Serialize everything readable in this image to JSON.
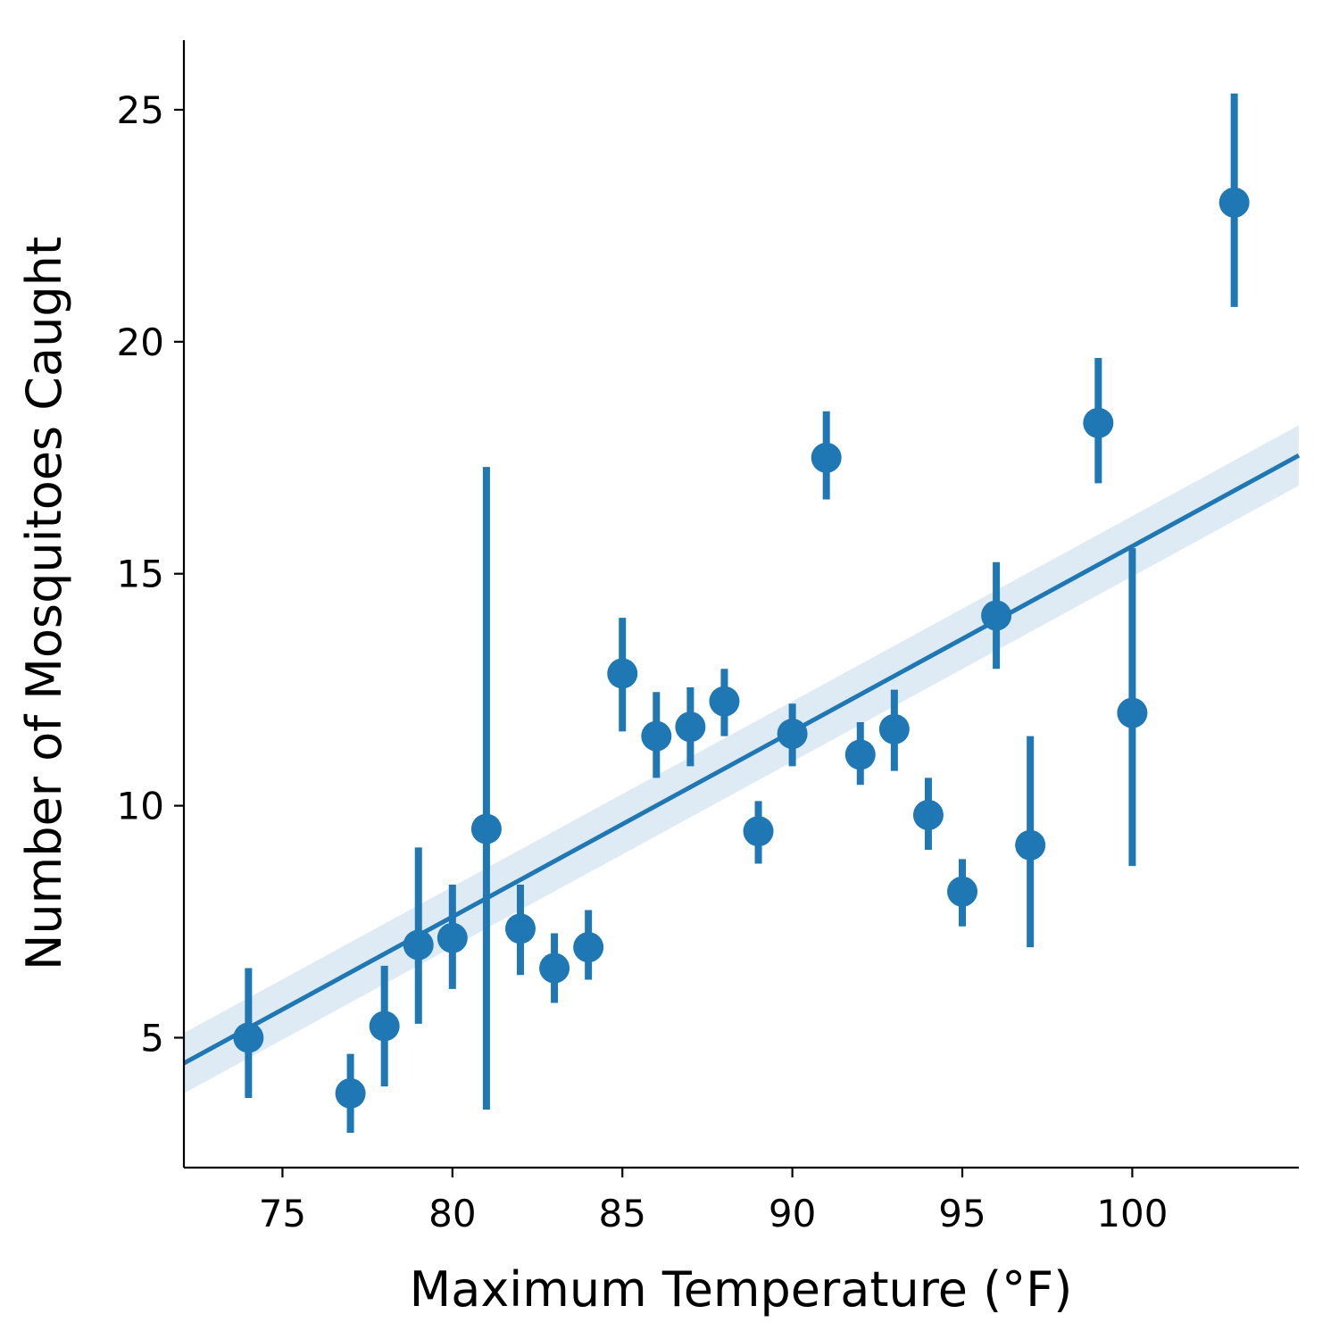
{
  "chart_data": {
    "type": "scatter",
    "xlabel": "Maximum Temperature (°F)",
    "ylabel": "Number of Mosquitoes Caught",
    "xlim": [
      72.1,
      104.9
    ],
    "ylim": [
      2.2,
      26.5
    ],
    "xticks": [
      75,
      80,
      85,
      90,
      95,
      100
    ],
    "yticks": [
      5,
      10,
      15,
      20,
      25
    ],
    "grid": false,
    "legend": "none",
    "series": [
      {
        "x": [
          74,
          77,
          78,
          79,
          80,
          81,
          82,
          83,
          84,
          85,
          86,
          87,
          88,
          89,
          90,
          91,
          92,
          93,
          94,
          95,
          96,
          97,
          99,
          100,
          103
        ],
        "y": [
          5.0,
          3.8,
          5.25,
          7.0,
          7.15,
          9.5,
          7.35,
          6.5,
          6.95,
          12.85,
          11.5,
          11.7,
          12.25,
          9.45,
          11.55,
          17.5,
          11.1,
          11.65,
          9.8,
          8.15,
          14.1,
          9.15,
          18.25,
          12.0,
          23.0
        ],
        "y_err_low": [
          3.7,
          2.95,
          3.95,
          5.3,
          6.05,
          3.45,
          6.35,
          5.75,
          6.25,
          11.6,
          10.6,
          10.85,
          11.5,
          8.75,
          10.85,
          16.6,
          10.45,
          10.75,
          9.05,
          7.4,
          12.95,
          6.95,
          16.95,
          8.7,
          20.75
        ],
        "y_err_high": [
          6.5,
          4.65,
          6.55,
          9.1,
          8.3,
          17.3,
          8.3,
          7.25,
          7.75,
          14.05,
          12.45,
          12.55,
          12.95,
          10.1,
          12.2,
          18.5,
          11.8,
          12.5,
          10.6,
          8.85,
          15.25,
          11.5,
          19.65,
          15.55,
          25.35
        ]
      }
    ],
    "regression": {
      "x": [
        72.1,
        104.9
      ],
      "y": [
        4.45,
        17.55
      ],
      "ci_low": [
        3.8,
        16.9
      ],
      "ci_high": [
        5.1,
        18.2
      ]
    },
    "colors": {
      "series": "#1f77b4",
      "ci_band": "#1f77b4",
      "axis": "#000000"
    }
  }
}
